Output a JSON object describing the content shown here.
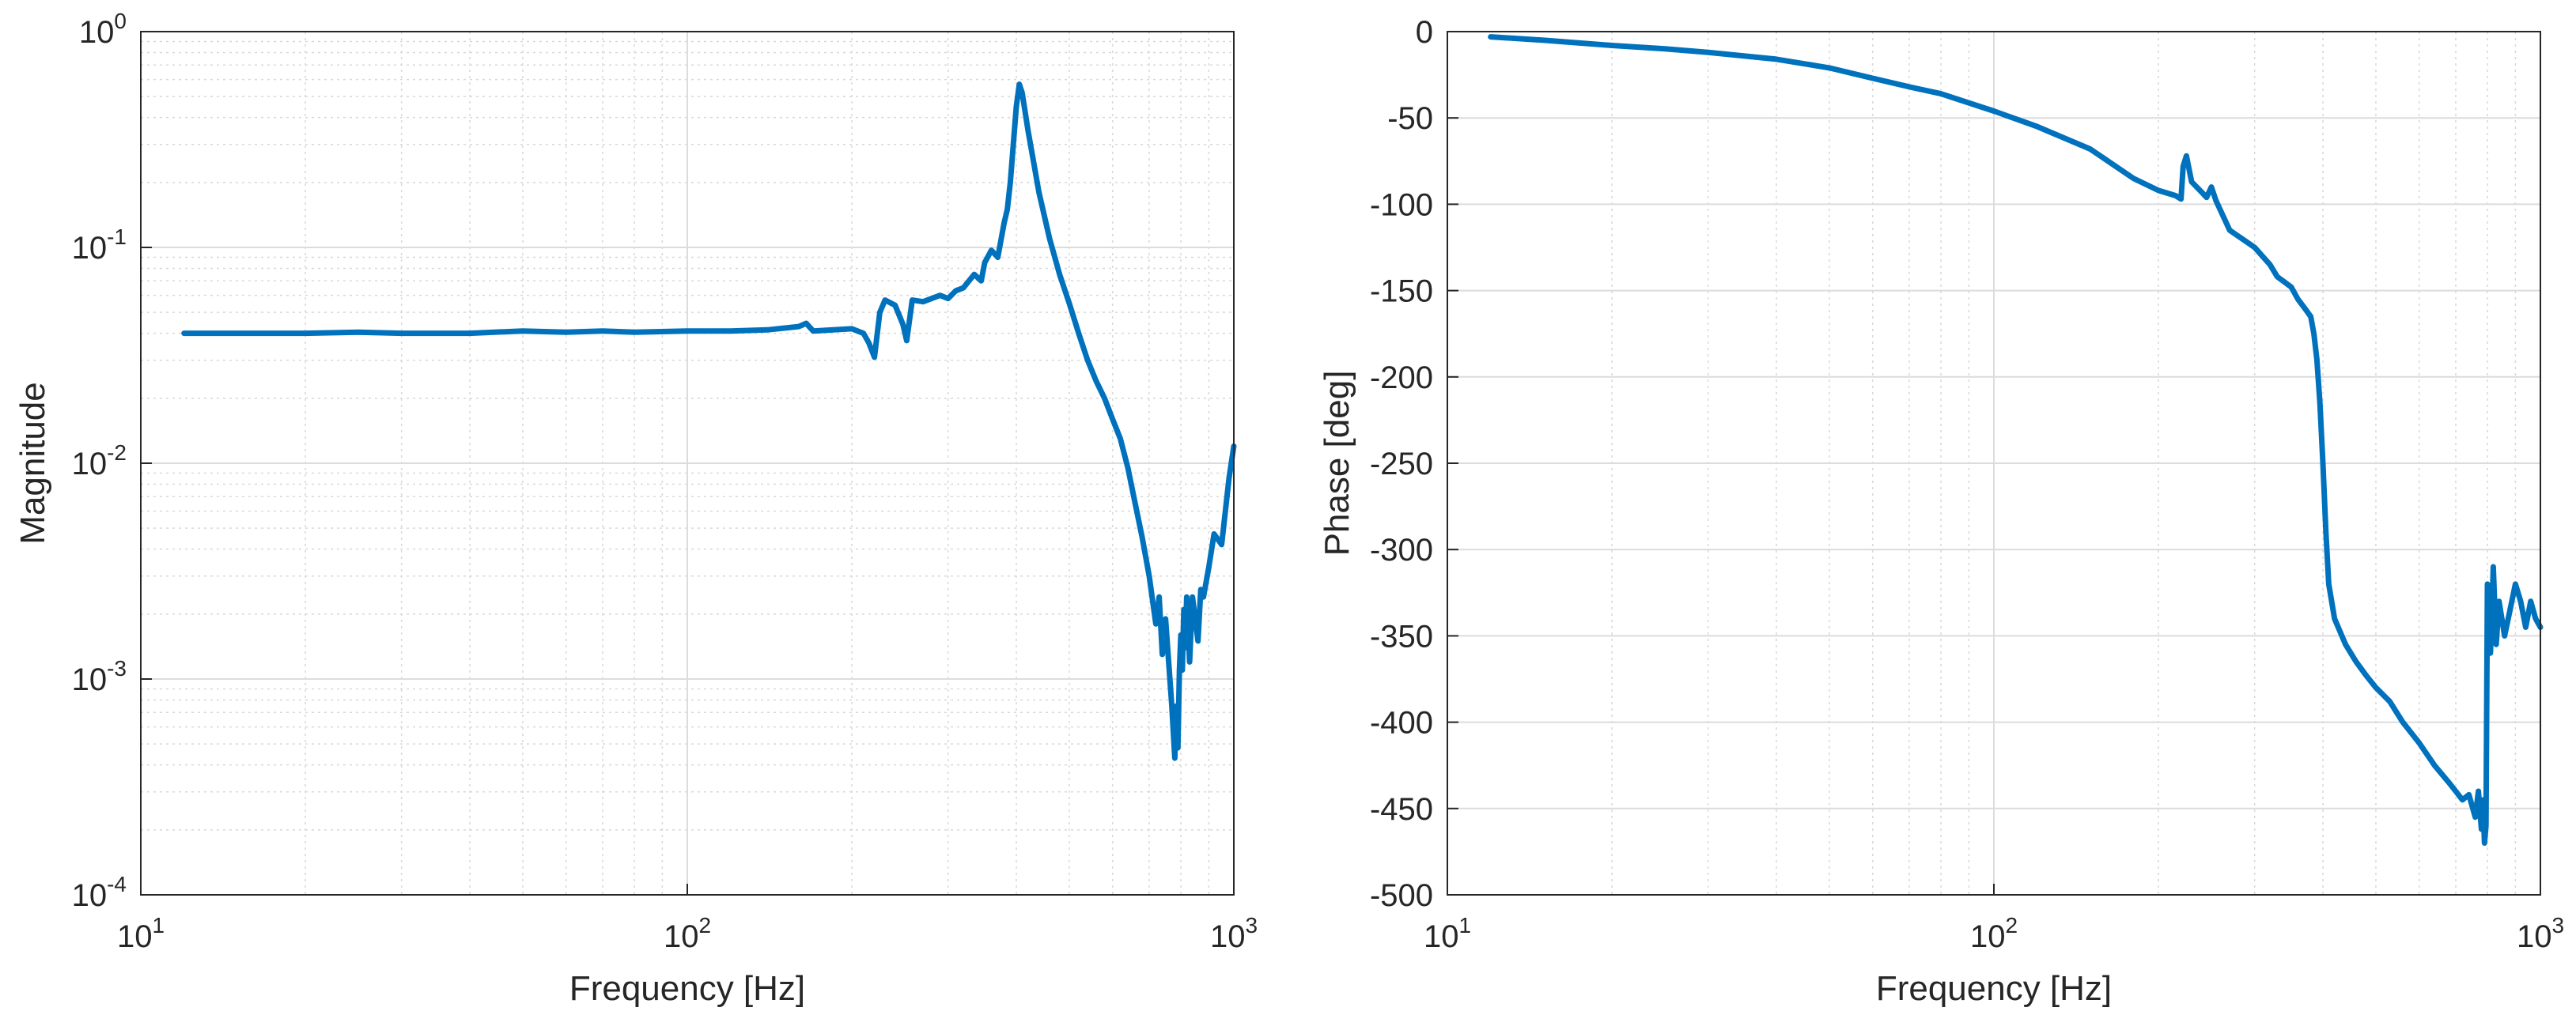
{
  "chart_data": [
    {
      "type": "line",
      "xlabel": "Frequency [Hz]",
      "ylabel": "Magnitude",
      "xscale": "log",
      "yscale": "log",
      "xlim": [
        10,
        1000
      ],
      "ylim": [
        0.0001,
        1
      ],
      "grid": true,
      "minor_grid": true,
      "x_ticks": [
        {
          "value": 10,
          "base": "10",
          "exp": "1"
        },
        {
          "value": 100,
          "base": "10",
          "exp": "2"
        },
        {
          "value": 1000,
          "base": "10",
          "exp": "3"
        }
      ],
      "y_ticks": [
        {
          "value": 1,
          "base": "10",
          "exp": "0"
        },
        {
          "value": 0.1,
          "base": "10",
          "exp": "-1"
        },
        {
          "value": 0.01,
          "base": "10",
          "exp": "-2"
        },
        {
          "value": 0.001,
          "base": "10",
          "exp": "-3"
        },
        {
          "value": 0.0001,
          "base": "10",
          "exp": "-4"
        }
      ],
      "color": "#0072BD",
      "series": [
        {
          "x": [
            12,
            15,
            20,
            25,
            30,
            40,
            50,
            60,
            70,
            80,
            100,
            120,
            140,
            160,
            165,
            170,
            200,
            210,
            215,
            220,
            225,
            230,
            240,
            248,
            252,
            258,
            270,
            290,
            300,
            310,
            320,
            335,
            345,
            350,
            360,
            370,
            380,
            385,
            390,
            395,
            400,
            405,
            410,
            420,
            440,
            460,
            480,
            500,
            520,
            540,
            560,
            580,
            600,
            620,
            640,
            660,
            680,
            700,
            720,
            730,
            740,
            750,
            760,
            770,
            780,
            785,
            790,
            795,
            800,
            805,
            810,
            815,
            820,
            830,
            840,
            850,
            860,
            870,
            880,
            900,
            920,
            950,
            980,
            1000
          ],
          "y": [
            0.04,
            0.04,
            0.04,
            0.0405,
            0.04,
            0.04,
            0.041,
            0.0405,
            0.041,
            0.0405,
            0.041,
            0.041,
            0.0415,
            0.043,
            0.0445,
            0.041,
            0.042,
            0.04,
            0.036,
            0.031,
            0.05,
            0.057,
            0.054,
            0.044,
            0.037,
            0.057,
            0.056,
            0.06,
            0.058,
            0.063,
            0.065,
            0.075,
            0.07,
            0.085,
            0.097,
            0.09,
            0.13,
            0.15,
            0.2,
            0.3,
            0.45,
            0.57,
            0.52,
            0.35,
            0.18,
            0.11,
            0.075,
            0.055,
            0.04,
            0.03,
            0.024,
            0.02,
            0.016,
            0.013,
            0.0095,
            0.0065,
            0.0045,
            0.003,
            0.0018,
            0.0024,
            0.0013,
            0.0019,
            0.0012,
            0.00075,
            0.00043,
            0.00075,
            0.00048,
            0.0011,
            0.0016,
            0.0011,
            0.0021,
            0.0014,
            0.0024,
            0.0012,
            0.0024,
            0.0019,
            0.0015,
            0.0026,
            0.0024,
            0.0033,
            0.0047,
            0.0042,
            0.0085,
            0.012
          ]
        }
      ]
    },
    {
      "type": "line",
      "xlabel": "Frequency [Hz]",
      "ylabel": "Phase [deg]",
      "xscale": "log",
      "yscale": "linear",
      "xlim": [
        10,
        1000
      ],
      "ylim": [
        -500,
        0
      ],
      "grid": true,
      "minor_grid": true,
      "x_ticks": [
        {
          "value": 10,
          "base": "10",
          "exp": "1"
        },
        {
          "value": 100,
          "base": "10",
          "exp": "2"
        },
        {
          "value": 1000,
          "base": "10",
          "exp": "3"
        }
      ],
      "y_ticks": [
        0,
        -50,
        -100,
        -150,
        -200,
        -250,
        -300,
        -350,
        -400,
        -450,
        -500
      ],
      "color": "#0072BD",
      "series": [
        {
          "x": [
            12,
            15,
            20,
            25,
            30,
            40,
            50,
            60,
            70,
            80,
            100,
            120,
            150,
            180,
            200,
            215,
            220,
            222,
            225,
            230,
            240,
            245,
            250,
            255,
            270,
            300,
            320,
            330,
            340,
            350,
            360,
            370,
            380,
            385,
            390,
            395,
            400,
            405,
            410,
            420,
            440,
            460,
            480,
            500,
            530,
            560,
            600,
            640,
            680,
            700,
            720,
            740,
            760,
            770,
            780,
            785,
            790,
            795,
            800,
            805,
            810,
            815,
            820,
            830,
            840,
            850,
            860,
            880,
            900,
            920,
            940,
            960,
            980,
            1000
          ],
          "y": [
            -3,
            -5,
            -8,
            -10,
            -12,
            -16,
            -21,
            -27,
            -32,
            -36,
            -46,
            -55,
            -68,
            -85,
            -92,
            -95,
            -97,
            -78,
            -72,
            -87,
            -93,
            -96,
            -90,
            -98,
            -115,
            -125,
            -135,
            -142,
            -145,
            -148,
            -155,
            -160,
            -165,
            -175,
            -190,
            -215,
            -250,
            -290,
            -320,
            -340,
            -355,
            -365,
            -373,
            -380,
            -388,
            -400,
            -412,
            -425,
            -435,
            -440,
            -445,
            -442,
            -455,
            -440,
            -462,
            -445,
            -470,
            -460,
            -320,
            -340,
            -360,
            -340,
            -310,
            -355,
            -330,
            -340,
            -350,
            -335,
            -320,
            -330,
            -345,
            -330,
            -340,
            -345
          ]
        }
      ]
    }
  ]
}
